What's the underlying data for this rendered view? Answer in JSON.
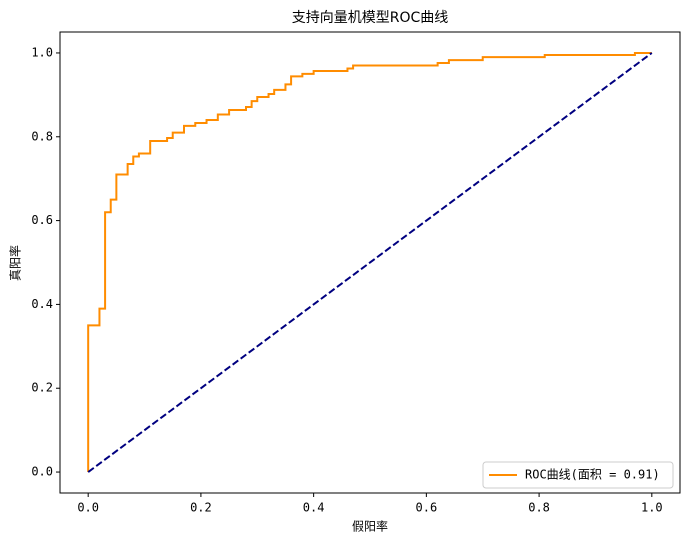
{
  "chart_data": {
    "type": "line",
    "title": "支持向量机模型ROC曲线",
    "x_label": "假阳率",
    "y_label": "真阳率",
    "xlim": [
      -0.05,
      1.05
    ],
    "ylim": [
      -0.05,
      1.05
    ],
    "xticks": [
      {
        "value": 0,
        "label": "0.0"
      },
      0.2,
      0.4,
      0.6,
      0.8,
      {
        "value": 1,
        "label": "1.0"
      }
    ],
    "yticks": [
      {
        "value": 0,
        "label": "0.0"
      },
      0.2,
      0.4,
      0.6,
      0.8,
      {
        "value": 1,
        "label": "1.0"
      }
    ],
    "legend": "lower right",
    "series": [
      {
        "name": "ROC曲线(面积 = 0.91)",
        "color": "#ff8c00",
        "style": "solid",
        "x": [
          0,
          0,
          0.02,
          0.02,
          0.03,
          0.03,
          0.04,
          0.04,
          0.05,
          0.05,
          0.07,
          0.07,
          0.08,
          0.08,
          0.09,
          0.09,
          0.11,
          0.11,
          0.14,
          0.14,
          0.15,
          0.15,
          0.17,
          0.17,
          0.19,
          0.19,
          0.21,
          0.21,
          0.23,
          0.23,
          0.25,
          0.25,
          0.28,
          0.28,
          0.29,
          0.29,
          0.3,
          0.3,
          0.32,
          0.32,
          0.33,
          0.33,
          0.35,
          0.35,
          0.36,
          0.36,
          0.38,
          0.38,
          0.4,
          0.4,
          0.46,
          0.46,
          0.47,
          0.47,
          0.62,
          0.62,
          0.64,
          0.64,
          0.7,
          0.7,
          0.81,
          0.81,
          0.97,
          0.97,
          1
        ],
        "values": [
          0,
          0.35,
          0.35,
          0.39,
          0.39,
          0.62,
          0.62,
          0.65,
          0.65,
          0.71,
          0.71,
          0.735,
          0.735,
          0.753,
          0.753,
          0.76,
          0.76,
          0.79,
          0.79,
          0.797,
          0.797,
          0.81,
          0.81,
          0.826,
          0.826,
          0.833,
          0.833,
          0.84,
          0.84,
          0.853,
          0.853,
          0.864,
          0.864,
          0.871,
          0.871,
          0.885,
          0.885,
          0.895,
          0.895,
          0.902,
          0.902,
          0.912,
          0.912,
          0.925,
          0.925,
          0.944,
          0.944,
          0.95,
          0.95,
          0.957,
          0.957,
          0.963,
          0.963,
          0.97,
          0.97,
          0.976,
          0.976,
          0.983,
          0.983,
          0.99,
          0.99,
          0.995,
          0.995,
          1,
          1
        ]
      },
      {
        "color": "#000080",
        "style": "dashed",
        "x": [
          0,
          1
        ],
        "values": [
          0,
          1
        ]
      }
    ]
  }
}
